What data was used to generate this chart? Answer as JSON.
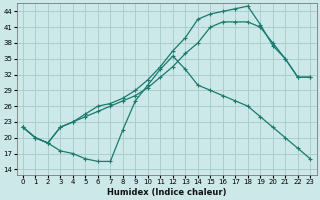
{
  "xlabel": "Humidex (Indice chaleur)",
  "xlim": [
    -0.5,
    23.5
  ],
  "ylim": [
    13,
    45.5
  ],
  "yticks": [
    14,
    17,
    20,
    23,
    26,
    29,
    32,
    35,
    38,
    41,
    44
  ],
  "xticks": [
    0,
    1,
    2,
    3,
    4,
    5,
    6,
    7,
    8,
    9,
    10,
    11,
    12,
    13,
    14,
    15,
    16,
    17,
    18,
    19,
    20,
    21,
    22,
    23
  ],
  "background_color": "#cce8e8",
  "grid_color": "#aacece",
  "line_color": "#1a7a6e",
  "lines": [
    {
      "x": [
        0,
        1,
        2,
        3,
        4,
        5,
        6,
        7,
        8,
        9,
        10,
        11,
        12,
        13,
        14,
        15,
        16,
        17,
        18,
        19,
        20,
        21,
        22,
        23
      ],
      "y": [
        22,
        20,
        19,
        17.5,
        17,
        16,
        15.5,
        15.5,
        21.5,
        27,
        30,
        33,
        35.5,
        33,
        30,
        29,
        28,
        27,
        26,
        24,
        22,
        20,
        18,
        16
      ]
    },
    {
      "x": [
        0,
        1,
        2,
        3,
        4,
        5,
        6,
        7,
        8,
        9,
        10,
        11,
        12,
        13,
        14,
        15,
        16,
        17,
        18,
        19,
        20,
        21,
        22,
        23
      ],
      "y": [
        22,
        20,
        19,
        22,
        23,
        24,
        25,
        26,
        27,
        28,
        29.5,
        31.5,
        33.5,
        36,
        38,
        41,
        42,
        42,
        42,
        41,
        38,
        35,
        31.5,
        31.5
      ]
    },
    {
      "x": [
        0,
        1,
        2,
        3,
        4,
        5,
        6,
        7,
        8,
        9,
        10,
        11,
        12,
        13,
        14,
        15,
        16,
        17,
        18,
        19,
        20,
        21,
        22,
        23
      ],
      "y": [
        22,
        20,
        19,
        22,
        23,
        24.5,
        26,
        26.5,
        27.5,
        29,
        31,
        33.5,
        36.5,
        39,
        42.5,
        43.5,
        44,
        44.5,
        45,
        41.5,
        37.5,
        35,
        31.5,
        31.5
      ]
    }
  ]
}
